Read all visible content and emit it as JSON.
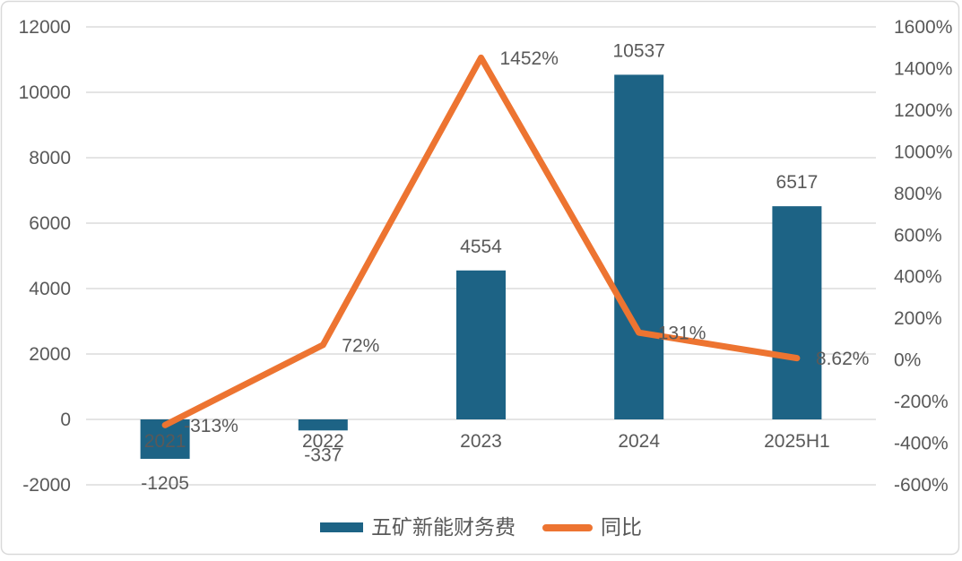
{
  "colors": {
    "bar": "#1D6385",
    "line": "#ED7431",
    "text": "#595959",
    "grid": "#DBDBDB",
    "frame_border": "#D9D9D9",
    "background": "#FFFFFF"
  },
  "chart_data": {
    "type": "combo-bar-line",
    "title": "",
    "categories": [
      "2021",
      "2022",
      "2023",
      "2024",
      "2025H1"
    ],
    "series": [
      {
        "name": "五矿新能财务费",
        "type": "bar",
        "axis": "left",
        "color": "#1D6385",
        "values": [
          -1205,
          -337,
          4554,
          10537,
          6517
        ],
        "data_labels": [
          "-1205",
          "-337",
          "4554",
          "10537",
          "6517"
        ]
      },
      {
        "name": "同比",
        "type": "line",
        "axis": "right",
        "color": "#ED7431",
        "values": [
          -313,
          72,
          1452,
          131,
          8.62
        ],
        "data_labels": [
          "-313%",
          "72%",
          "1452%",
          "131%",
          "8.62%"
        ]
      }
    ],
    "left_axis": {
      "min": -2000,
      "max": 12000,
      "step": 2000,
      "tick_labels": [
        "12000",
        "10000",
        "8000",
        "6000",
        "4000",
        "2000",
        "0",
        "-2000"
      ]
    },
    "right_axis": {
      "min": -600,
      "max": 1600,
      "step": 200,
      "tick_labels": [
        "1600%",
        "1400%",
        "1200%",
        "1000%",
        "800%",
        "600%",
        "400%",
        "200%",
        "0%",
        "-200%",
        "-400%",
        "-600%"
      ]
    },
    "grid": "horizontal",
    "legend_position": "bottom-center"
  }
}
